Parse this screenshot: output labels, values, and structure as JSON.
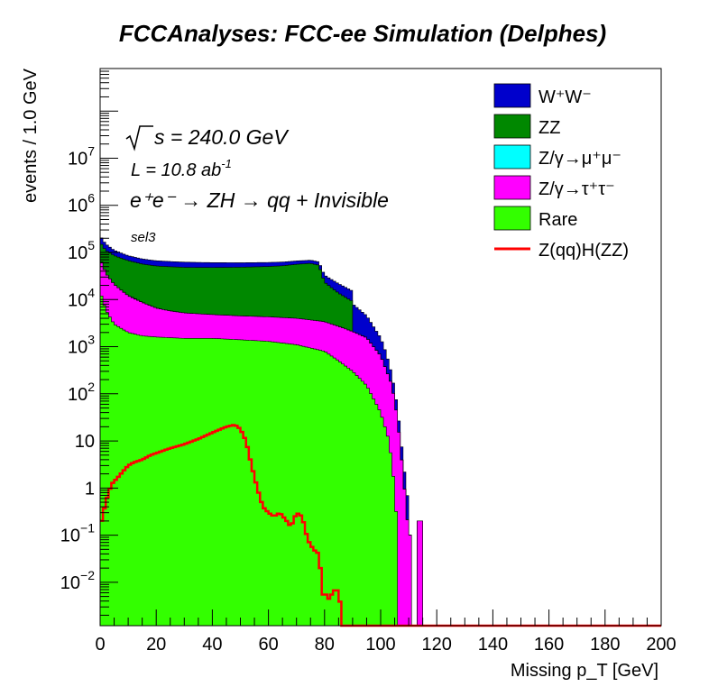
{
  "chart_data": {
    "type": "area",
    "title": "FCCAnalyses: FCC-ee Simulation (Delphes)",
    "xlabel": "Missing p_T [GeV]",
    "ylabel": "events / 1.0 GeV",
    "xlim": [
      0,
      200
    ],
    "ylim": [
      0.0012,
      800000000
    ],
    "y_scale": "log",
    "grid": false,
    "legend_position": "top-right",
    "x_ticks": [
      "0",
      "20",
      "40",
      "60",
      "80",
      "100",
      "120",
      "140",
      "160",
      "180",
      "200"
    ],
    "y_ticks": [
      {
        "value": 0.01,
        "base": "10",
        "exp": "−2"
      },
      {
        "value": 0.1,
        "base": "10",
        "exp": "−1"
      },
      {
        "value": 1,
        "base": "1",
        "exp": ""
      },
      {
        "value": 10,
        "base": "10",
        "exp": ""
      },
      {
        "value": 100,
        "base": "10",
        "exp": "2"
      },
      {
        "value": 1000,
        "base": "10",
        "exp": "3"
      },
      {
        "value": 10000,
        "base": "10",
        "exp": "4"
      },
      {
        "value": 100000,
        "base": "10",
        "exp": "5"
      },
      {
        "value": 1000000,
        "base": "10",
        "exp": "6"
      },
      {
        "value": 10000000,
        "base": "10",
        "exp": "7"
      }
    ],
    "annotations": {
      "sqrt_s": "s = 240.0 GeV",
      "lumi": "L = 10.8 ab",
      "lumi_exp": "-1",
      "process": "e⁺e⁻ → ZH → qq + Invisible",
      "selection": "sel3"
    },
    "stacked": true,
    "stack_order_bottom_to_top": [
      "Rare",
      "Z/γ→τ⁺τ⁻",
      "Z/γ→μ⁺μ⁻",
      "ZZ",
      "W⁺W⁻"
    ],
    "series": [
      {
        "name": "W⁺W⁻",
        "color": "#0000cc",
        "kind": "stacked",
        "x": [
          0,
          2,
          5,
          10,
          15,
          20,
          25,
          30,
          40,
          50,
          60,
          70,
          80,
          85,
          90,
          95,
          100,
          102,
          104,
          106,
          108,
          110,
          111,
          112,
          113,
          118
        ],
        "values": [
          60000,
          40000,
          25000,
          18000,
          16000,
          15000,
          14500,
          14000,
          13000,
          12000,
          11000,
          10000,
          9500,
          8000,
          6000,
          3000,
          900,
          400,
          100,
          20,
          2,
          0.3,
          0,
          0,
          0,
          0
        ]
      },
      {
        "name": "ZZ",
        "color": "#008800",
        "kind": "stacked",
        "x": [
          0,
          2,
          5,
          10,
          15,
          20,
          30,
          40,
          50,
          60,
          65,
          70,
          75,
          78,
          80,
          85,
          90
        ],
        "values": [
          90000,
          75000,
          65000,
          55000,
          48000,
          45000,
          43000,
          43000,
          44000,
          46000,
          48000,
          52000,
          55000,
          50000,
          20000,
          11000,
          7000
        ]
      },
      {
        "name": "Z/γ→μ⁺μ⁻",
        "color": "#00ffff",
        "kind": "stacked",
        "x": [
          0,
          2,
          4,
          6,
          8,
          10,
          11,
          12,
          13,
          14,
          15,
          16,
          17,
          18
        ],
        "values": [
          0.2,
          50,
          60,
          70,
          90,
          150,
          220,
          250,
          160,
          100,
          60,
          30,
          0.01,
          0
        ]
      },
      {
        "name": "Z/γ→τ⁺τ⁻",
        "color": "#ff00ff",
        "kind": "stacked",
        "x": [
          0,
          2,
          5,
          10,
          15,
          20,
          25,
          30,
          40,
          50,
          60,
          70,
          80,
          85,
          90,
          95,
          100,
          104,
          106,
          108,
          110,
          112,
          114,
          117
        ],
        "values": [
          60000,
          30000,
          18000,
          10000,
          7000,
          5000,
          4200,
          3700,
          3300,
          3100,
          3000,
          2900,
          2600,
          2200,
          1800,
          1400,
          600,
          150,
          30,
          2,
          0.1,
          0,
          0.2,
          0
        ]
      },
      {
        "name": "Rare",
        "color": "#33ff00",
        "kind": "stacked",
        "x": [
          0,
          2,
          5,
          10,
          15,
          20,
          30,
          40,
          50,
          60,
          70,
          80,
          85,
          90,
          95,
          100,
          103,
          105,
          106,
          107
        ],
        "values": [
          15000,
          6000,
          3000,
          2000,
          1700,
          1600,
          1500,
          1500,
          1400,
          1300,
          1100,
          800,
          500,
          300,
          150,
          40,
          10,
          1,
          0.1,
          0
        ]
      },
      {
        "name": "Z(qq)H(ZZ)",
        "color": "#ff0000",
        "kind": "line",
        "x": [
          0,
          2,
          4,
          6,
          8,
          10,
          12,
          15,
          18,
          20,
          25,
          30,
          35,
          40,
          45,
          48,
          50,
          52,
          54,
          56,
          58,
          60,
          62,
          64,
          66,
          68,
          70,
          72,
          74,
          76,
          78,
          79,
          80,
          81,
          82,
          83,
          84,
          85,
          86
        ],
        "values": [
          0.15,
          0.5,
          1.2,
          1.6,
          2.2,
          3,
          3.5,
          4,
          5,
          5.5,
          7,
          8.5,
          11,
          15,
          20,
          22,
          18,
          10,
          3,
          1,
          0.4,
          0.3,
          0.25,
          0.3,
          0.22,
          0.15,
          0.3,
          0.25,
          0.08,
          0.05,
          0.04,
          0.01,
          0.003,
          0.01,
          0.002,
          0.015,
          0.003,
          0.015,
          0.001
        ]
      }
    ]
  }
}
